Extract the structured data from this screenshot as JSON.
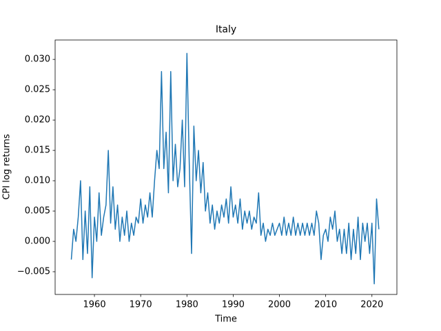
{
  "chart_data": {
    "type": "line",
    "title": "Italy",
    "x_label": "Time",
    "y_label": "CPI log returns",
    "x": [
      1955,
      1955.5,
      1956,
      1956.5,
      1957,
      1957.5,
      1958,
      1958.5,
      1959,
      1959.5,
      1960,
      1960.5,
      1961,
      1961.5,
      1962,
      1962.5,
      1963,
      1963.5,
      1964,
      1964.5,
      1965,
      1965.5,
      1966,
      1966.5,
      1967,
      1967.5,
      1968,
      1968.5,
      1969,
      1969.5,
      1970,
      1970.5,
      1971,
      1971.5,
      1972,
      1972.5,
      1973,
      1973.5,
      1974,
      1974.5,
      1975,
      1975.5,
      1976,
      1976.5,
      1977,
      1977.5,
      1978,
      1978.5,
      1979,
      1979.5,
      1980,
      1980.5,
      1981,
      1981.5,
      1982,
      1982.5,
      1983,
      1983.5,
      1984,
      1984.5,
      1985,
      1985.5,
      1986,
      1986.5,
      1987,
      1987.5,
      1988,
      1988.5,
      1989,
      1989.5,
      1990,
      1990.5,
      1991,
      1991.5,
      1992,
      1992.5,
      1993,
      1993.5,
      1994,
      1994.5,
      1995,
      1995.5,
      1996,
      1996.5,
      1997,
      1997.5,
      1998,
      1998.5,
      1999,
      1999.5,
      2000,
      2000.5,
      2001,
      2001.5,
      2002,
      2002.5,
      2003,
      2003.5,
      2004,
      2004.5,
      2005,
      2005.5,
      2006,
      2006.5,
      2007,
      2007.5,
      2008,
      2008.5,
      2009,
      2009.5,
      2010,
      2010.5,
      2011,
      2011.5,
      2012,
      2012.5,
      2013,
      2013.5,
      2014,
      2014.5,
      2015,
      2015.5,
      2016,
      2016.5,
      2017,
      2017.5,
      2018,
      2018.5,
      2019,
      2019.5,
      2020,
      2020.5,
      2021,
      2021.5
    ],
    "series": [
      {
        "name": "Italy",
        "color": "#1f77b4",
        "values": [
          -0.003,
          0.002,
          0.0,
          0.004,
          0.01,
          -0.003,
          0.005,
          -0.002,
          0.009,
          -0.006,
          0.004,
          0.0,
          0.008,
          0.001,
          0.004,
          0.006,
          0.015,
          0.003,
          0.009,
          0.002,
          0.006,
          0.0,
          0.004,
          0.001,
          0.005,
          0.0,
          0.003,
          0.001,
          0.004,
          0.003,
          0.007,
          0.003,
          0.006,
          0.004,
          0.008,
          0.004,
          0.01,
          0.015,
          0.012,
          0.028,
          0.012,
          0.018,
          0.008,
          0.028,
          0.01,
          0.016,
          0.009,
          0.012,
          0.02,
          0.009,
          0.031,
          0.013,
          -0.002,
          0.019,
          0.01,
          0.015,
          0.008,
          0.013,
          0.005,
          0.008,
          0.003,
          0.006,
          0.002,
          0.005,
          0.003,
          0.006,
          0.004,
          0.007,
          0.003,
          0.009,
          0.004,
          0.006,
          0.003,
          0.007,
          0.002,
          0.005,
          0.003,
          0.005,
          0.002,
          0.004,
          0.003,
          0.008,
          0.001,
          0.003,
          0.0,
          0.002,
          0.001,
          0.003,
          0.001,
          0.002,
          0.003,
          0.001,
          0.004,
          0.001,
          0.003,
          0.001,
          0.004,
          0.001,
          0.003,
          0.001,
          0.003,
          0.001,
          0.003,
          0.001,
          0.003,
          0.001,
          0.005,
          0.003,
          -0.003,
          0.001,
          0.002,
          0.0,
          0.004,
          0.002,
          0.005,
          0.0,
          0.002,
          -0.002,
          0.002,
          -0.002,
          0.003,
          -0.003,
          0.002,
          -0.002,
          0.004,
          -0.003,
          0.003,
          0.0,
          0.003,
          -0.002,
          0.003,
          -0.007,
          0.007,
          0.002
        ]
      }
    ],
    "xlim": [
      1951.5,
      2025.4
    ],
    "xticks": [
      1960,
      1970,
      1980,
      1990,
      2000,
      2010,
      2020
    ],
    "ylim": [
      -0.00875,
      0.0332
    ],
    "yticks": [
      {
        "value": -0.005,
        "label": "−0.005"
      },
      {
        "value": 0,
        "label": "0.000"
      },
      {
        "value": 0.005,
        "label": "0.005"
      },
      {
        "value": 0.01,
        "label": "0.010"
      },
      {
        "value": 0.015,
        "label": "0.015"
      },
      {
        "value": 0.02,
        "label": "0.020"
      },
      {
        "value": 0.025,
        "label": "0.025"
      },
      {
        "value": 0.03,
        "label": "0.030"
      }
    ],
    "grid": false
  }
}
